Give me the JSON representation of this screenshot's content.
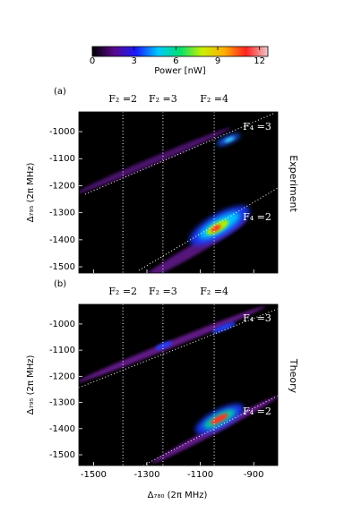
{
  "chart_data": {
    "type": "heatmap",
    "colorbar": {
      "label": "Power [nW]",
      "lim": [
        0,
        12.6
      ],
      "ticks": [
        0,
        3,
        6,
        9,
        12
      ],
      "colors": [
        "#000000",
        "#5a0a8c",
        "#1a1aff",
        "#00c8ff",
        "#00e070",
        "#c8f000",
        "#ffb000",
        "#ff2020",
        "#f0c8c8"
      ]
    },
    "xlabel": "Δ₇₈₀ (2π MHz)",
    "xlim": [
      -1555,
      -810
    ],
    "xticks": [
      -1500,
      -1300,
      -1100,
      -900
    ],
    "resonances": [
      -1390,
      -1240,
      -1048
    ],
    "panels": [
      {
        "label": "(a)",
        "side_label": "Experiment",
        "ylabel": "Δ₇₉₅ (2π MHz)",
        "ylim": [
          -1523,
          -927
        ],
        "yticks": [
          -1000,
          -1100,
          -1200,
          -1300,
          -1400,
          -1500
        ],
        "top_labels": [
          "F₂ =2",
          "F₂ =3",
          "F₂ =4"
        ],
        "line_labels": [
          "F₄ =3",
          "F₄ =2"
        ]
      },
      {
        "label": "(b)",
        "side_label": "Theory",
        "ylabel": "Δ₇₉₅ (2π MHz)",
        "ylim": [
          -1541,
          -925
        ],
        "yticks": [
          -1000,
          -1100,
          -1200,
          -1300,
          -1400,
          -1500
        ],
        "top_labels": [
          "F₂ =2",
          "F₂ =3",
          "F₂ =4"
        ],
        "line_labels": [
          "F₄ =3",
          "F₄ =2"
        ]
      }
    ]
  }
}
